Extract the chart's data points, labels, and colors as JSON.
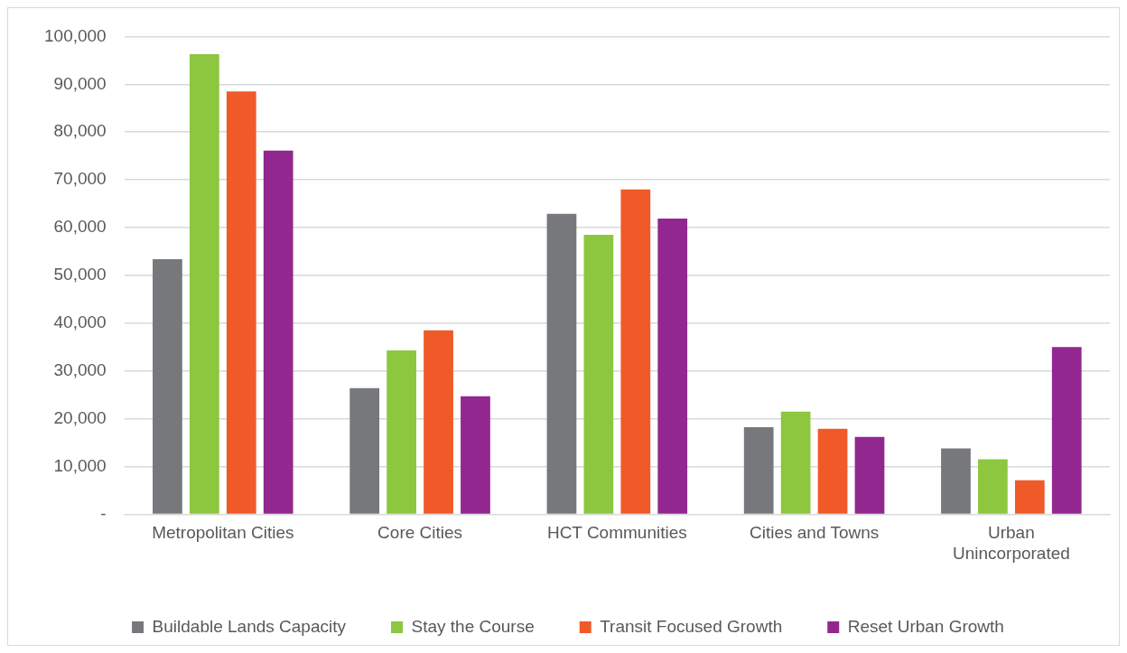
{
  "chart_data": {
    "type": "bar",
    "categories": [
      "Metropolitan Cities",
      "Core Cities",
      "HCT Communities",
      "Cities and Towns",
      "Urban Unincorporated"
    ],
    "series": [
      {
        "name": "Buildable Lands Capacity",
        "color": "#77787b",
        "values": [
          53400,
          26400,
          62900,
          18200,
          13800
        ]
      },
      {
        "name": "Stay the Course",
        "color": "#8dc63f",
        "values": [
          96300,
          34300,
          58500,
          21500,
          11500
        ]
      },
      {
        "name": "Transit Focused Growth",
        "color": "#f05a28",
        "values": [
          88500,
          38500,
          68000,
          17900,
          7100
        ]
      },
      {
        "name": "Reset Urban Growth",
        "color": "#92278f",
        "values": [
          76100,
          24700,
          61900,
          16200,
          35000
        ]
      }
    ],
    "ylim": [
      0,
      100000
    ],
    "yticks": [
      {
        "value": 0,
        "label": "-"
      },
      {
        "value": 10000,
        "label": "10,000"
      },
      {
        "value": 20000,
        "label": "20,000"
      },
      {
        "value": 30000,
        "label": "30,000"
      },
      {
        "value": 40000,
        "label": "40,000"
      },
      {
        "value": 50000,
        "label": "50,000"
      },
      {
        "value": 60000,
        "label": "60,000"
      },
      {
        "value": 70000,
        "label": "70,000"
      },
      {
        "value": 80000,
        "label": "80,000"
      },
      {
        "value": 90000,
        "label": "90,000"
      },
      {
        "value": 100000,
        "label": "100,000"
      }
    ],
    "grid": "y",
    "legend": "bottom"
  }
}
